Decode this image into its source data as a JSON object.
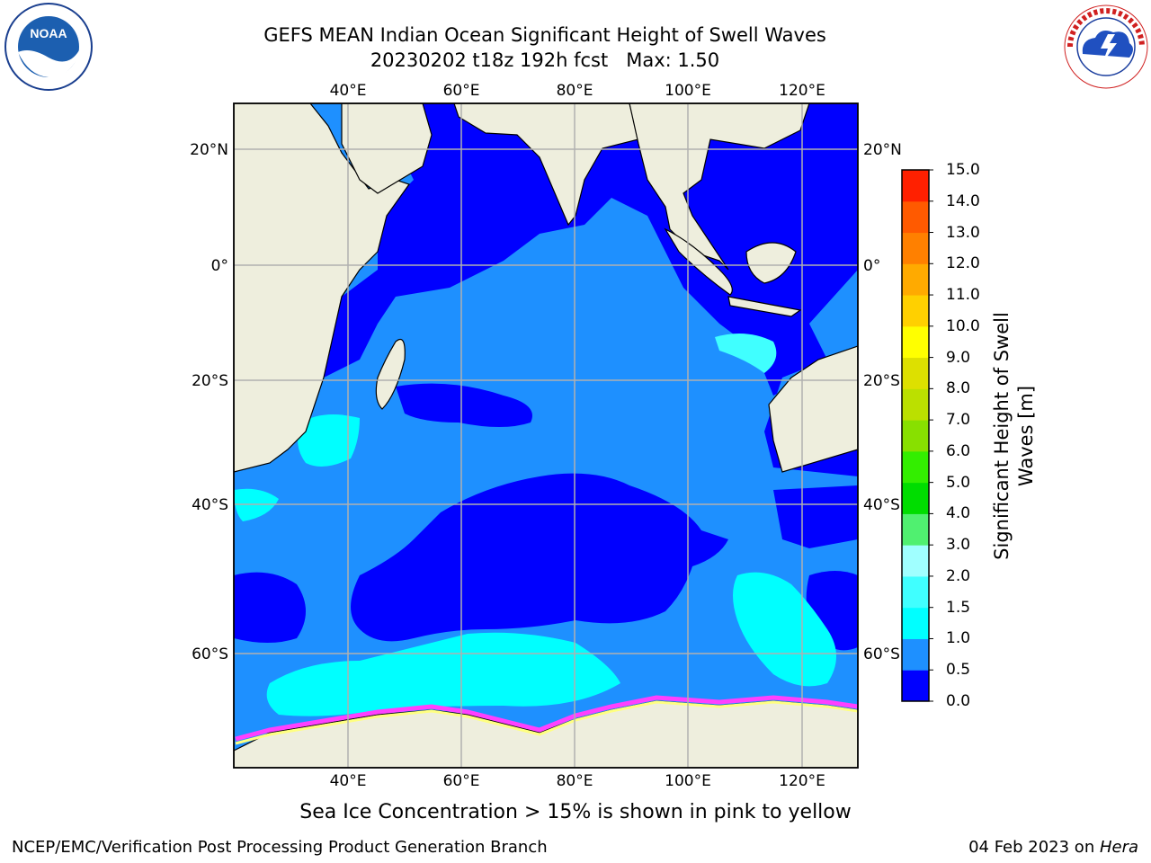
{
  "title": {
    "line1": "GEFS MEAN Indian Ocean Significant Height of Swell Waves",
    "line2": "20230202 t18z 192h fcst   Max: 1.50"
  },
  "map": {
    "lon_labels": [
      "40°E",
      "60°E",
      "80°E",
      "100°E",
      "120°E"
    ],
    "lat_labels_left": [
      "20°N",
      "0°",
      "20°S",
      "40°S",
      "60°S"
    ],
    "lat_labels_right": [
      "20°N",
      "0°",
      "20°S",
      "40°S",
      "60°S"
    ],
    "lon_range": [
      20,
      130
    ],
    "lat_range": [
      -73,
      30
    ],
    "grid": true
  },
  "colorbar": {
    "label": "Significant Height of Swell Waves [m]",
    "ticks": [
      "0.0",
      "0.5",
      "1.0",
      "1.5",
      "2.0",
      "3.0",
      "4.0",
      "5.0",
      "6.0",
      "7.0",
      "8.0",
      "9.0",
      "10.0",
      "11.0",
      "12.0",
      "13.0",
      "14.0",
      "15.0"
    ],
    "colors": [
      "#0000ff",
      "#1e90ff",
      "#00ffff",
      "#40ffff",
      "#a0ffff",
      "#50f070",
      "#00dd00",
      "#33ee00",
      "#88e000",
      "#bbe000",
      "#dde000",
      "#ffff00",
      "#ffd000",
      "#ffaa00",
      "#ff8000",
      "#ff5a00",
      "#ff2000"
    ]
  },
  "logos": {
    "left": "NOAA",
    "right": "NATIONAL WEATHER SERVICE"
  },
  "caption": "Sea Ice Concentration > 15% is shown in pink to yellow",
  "footer": {
    "left": "NCEP/EMC/Verification Post Processing Product Generation Branch",
    "right_text": "04 Feb 2023 on ",
    "right_italic": "Hera"
  }
}
